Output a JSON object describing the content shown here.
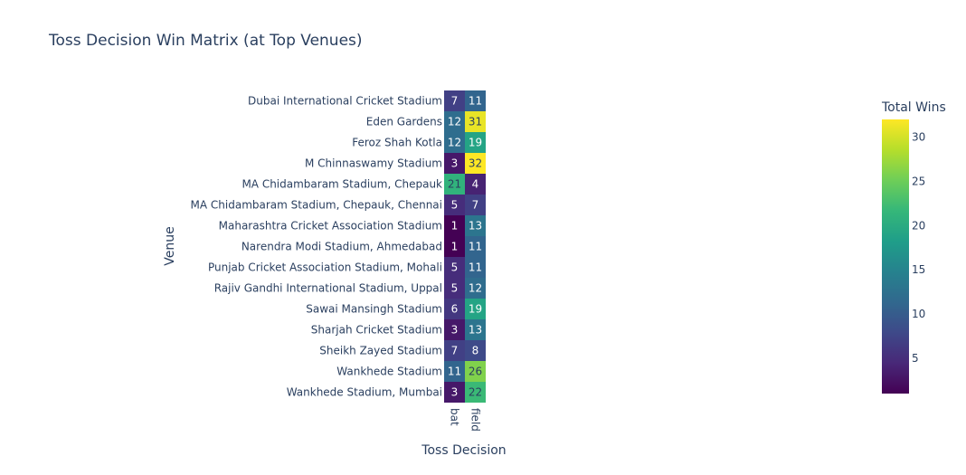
{
  "chart_data": {
    "type": "heatmap",
    "title": "Toss Decision Win Matrix (at Top Venues)",
    "xlabel": "Toss Decision",
    "ylabel": "Venue",
    "x": [
      "bat",
      "field"
    ],
    "y": [
      "Dubai International Cricket Stadium",
      "Eden Gardens",
      "Feroz Shah Kotla",
      "M Chinnaswamy Stadium",
      "MA Chidambaram Stadium, Chepauk",
      "MA Chidambaram Stadium, Chepauk, Chennai",
      "Maharashtra Cricket Association Stadium",
      "Narendra Modi Stadium, Ahmedabad",
      "Punjab Cricket Association Stadium, Mohali",
      "Rajiv Gandhi International Stadium, Uppal",
      "Sawai Mansingh Stadium",
      "Sharjah Cricket Stadium",
      "Sheikh Zayed Stadium",
      "Wankhede Stadium",
      "Wankhede Stadium, Mumbai"
    ],
    "z": [
      [
        7,
        11
      ],
      [
        12,
        31
      ],
      [
        12,
        19
      ],
      [
        3,
        32
      ],
      [
        21,
        4
      ],
      [
        5,
        7
      ],
      [
        1,
        13
      ],
      [
        1,
        11
      ],
      [
        5,
        11
      ],
      [
        5,
        12
      ],
      [
        6,
        19
      ],
      [
        3,
        13
      ],
      [
        7,
        8
      ],
      [
        11,
        26
      ],
      [
        3,
        22
      ]
    ],
    "colorscale": "Viridis",
    "zmin": 1,
    "zmax": 32,
    "colorbar": {
      "title": "Total Wins",
      "ticks": [
        5,
        10,
        15,
        20,
        25,
        30
      ]
    }
  }
}
